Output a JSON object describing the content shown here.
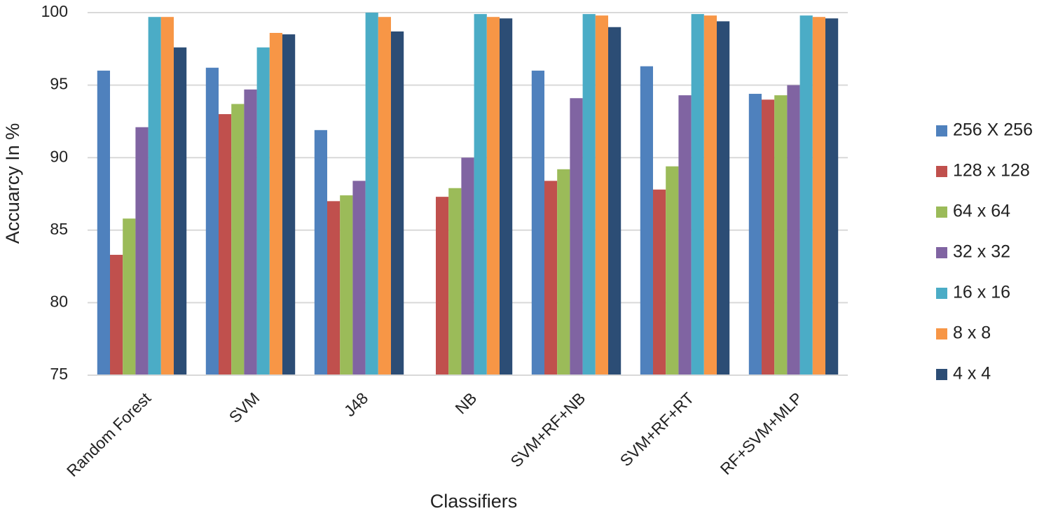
{
  "chart_data": {
    "type": "bar",
    "x_label": "Classifiers",
    "y_label": "Accuarcy In %",
    "categories": [
      "Random Forest",
      "SVM",
      "J48",
      "NB",
      "SVM+RF+NB",
      "SVM+RF+RT",
      "RF+SVM+MLP"
    ],
    "series": [
      {
        "name": "256 X 256",
        "color": "#4f81bd",
        "values": [
          96.0,
          96.2,
          91.9,
          null,
          96.0,
          96.3,
          94.4
        ]
      },
      {
        "name": "128 x 128",
        "color": "#c0504d",
        "values": [
          83.3,
          93.0,
          87.0,
          87.3,
          88.4,
          87.8,
          94.0
        ]
      },
      {
        "name": "64 x 64",
        "color": "#9bbb59",
        "values": [
          85.8,
          93.7,
          87.4,
          87.9,
          89.2,
          89.4,
          94.3
        ]
      },
      {
        "name": "32 x 32",
        "color": "#8064a2",
        "values": [
          92.1,
          94.7,
          88.4,
          90.0,
          94.1,
          94.3,
          95.0
        ]
      },
      {
        "name": "16 x 16",
        "color": "#4bacc6",
        "values": [
          99.7,
          97.6,
          100.0,
          99.9,
          99.9,
          99.9,
          99.8
        ]
      },
      {
        "name": "8 x 8",
        "color": "#f79646",
        "values": [
          99.7,
          98.6,
          99.7,
          99.7,
          99.8,
          99.8,
          99.7
        ]
      },
      {
        "name": "4 x 4",
        "color": "#2c4d75",
        "values": [
          97.6,
          98.5,
          98.7,
          99.6,
          99.0,
          99.4,
          99.6
        ]
      }
    ],
    "ylim": [
      75,
      100
    ],
    "yticks": [
      75,
      80,
      85,
      90,
      95,
      100
    ],
    "grid": true,
    "legend": "right"
  }
}
